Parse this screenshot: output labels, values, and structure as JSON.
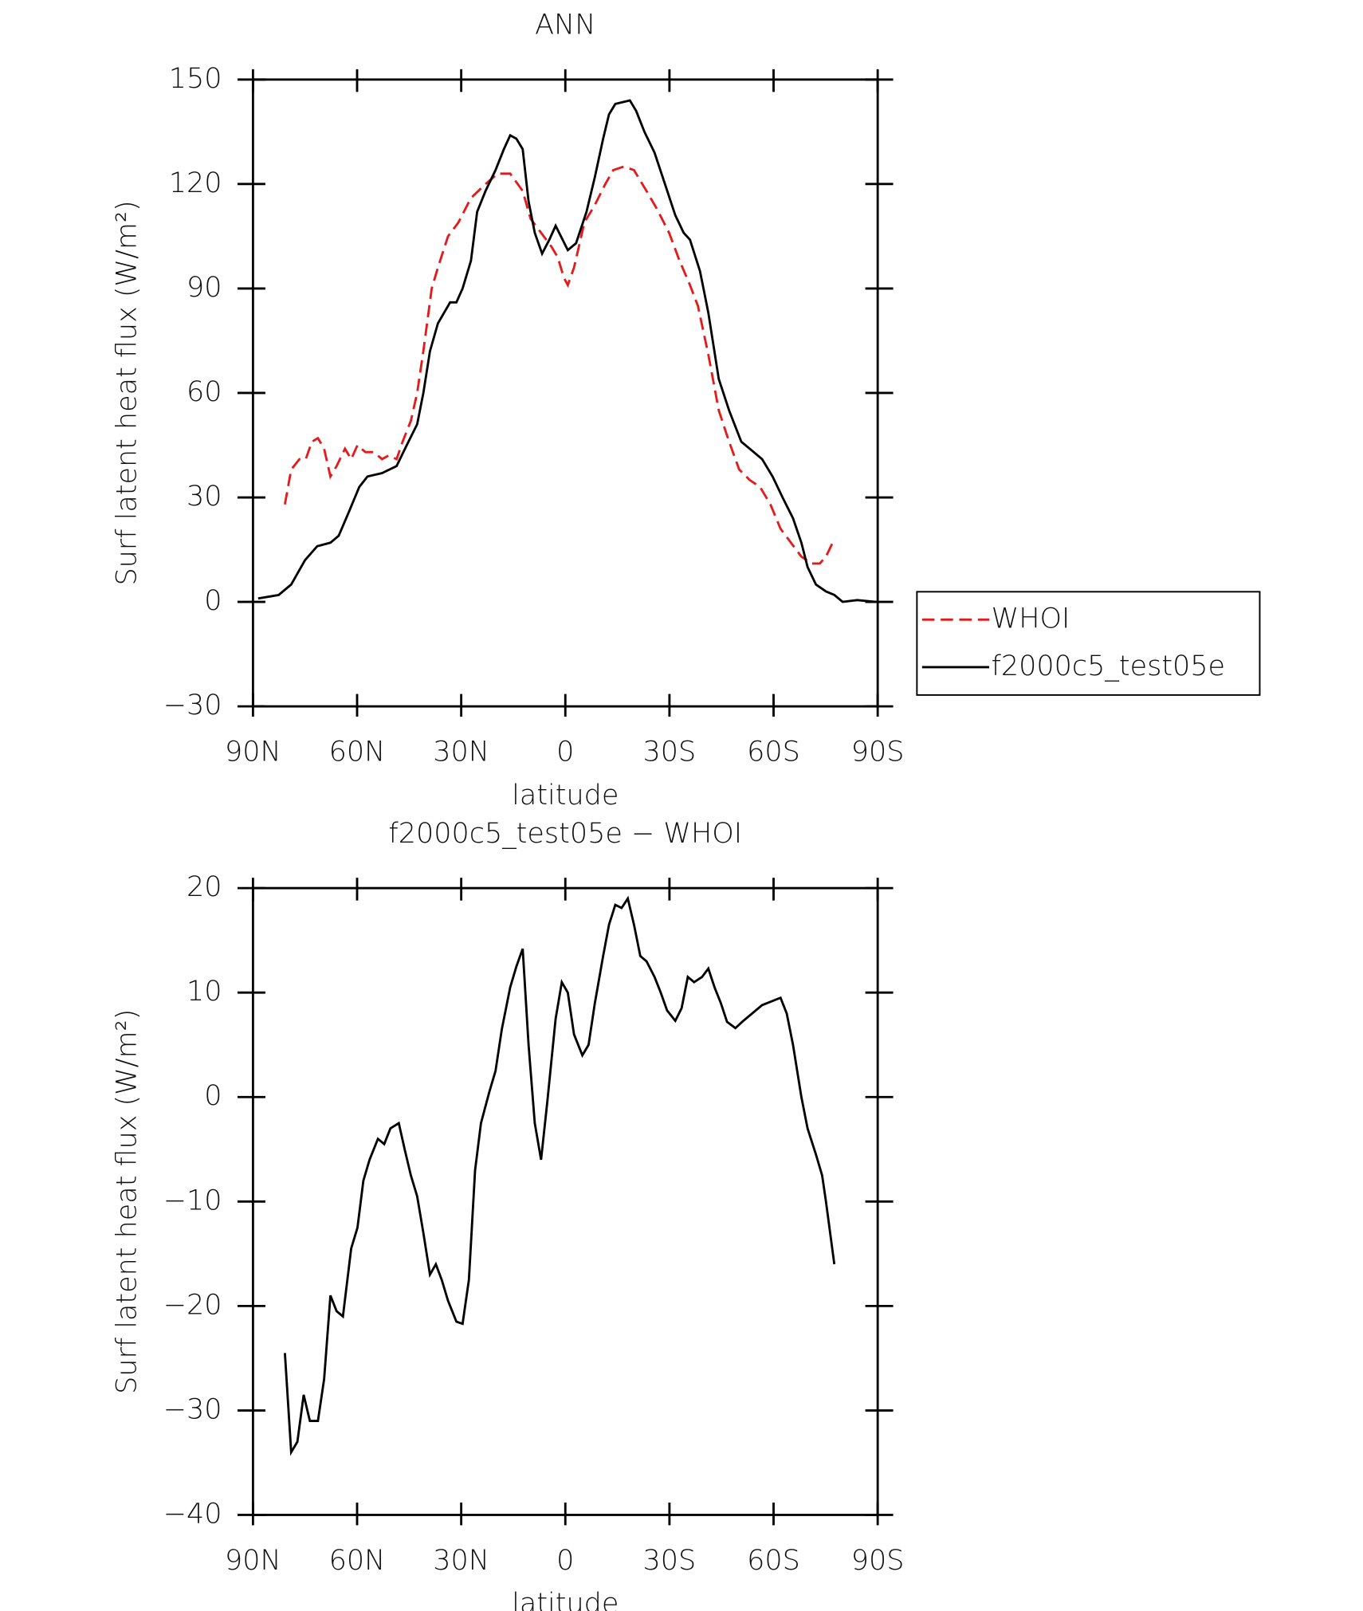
{
  "chart_data": [
    {
      "type": "line",
      "title": "ANN",
      "x_label": "latitude",
      "y_label": "Surf latent heat flux (W/m²)",
      "xlim": [
        90,
        -90
      ],
      "ylim": [
        -30,
        150
      ],
      "xticks": [
        {
          "value": 90,
          "label": "90N"
        },
        {
          "value": 60,
          "label": "60N"
        },
        {
          "value": 30,
          "label": "30N"
        },
        0,
        {
          "value": -30,
          "label": "30S"
        },
        {
          "value": -60,
          "label": "60S"
        },
        {
          "value": -90,
          "label": "90S"
        }
      ],
      "yticks": [
        {
          "value": -30,
          "label": "−30"
        },
        0,
        30,
        60,
        90,
        120,
        150
      ],
      "legend": "outside right",
      "series": [
        {
          "name": "WHOI",
          "color": "#e41a1c",
          "dash": true,
          "x": [
            80.8,
            79,
            76.6,
            74.8,
            73,
            71.3,
            69.5,
            67.7,
            65.9,
            63.5,
            61.7,
            59.9,
            57.6,
            55.2,
            52.8,
            51,
            48.6,
            46.9,
            44.5,
            42.7,
            40.9,
            38.5,
            36.7,
            33.8,
            30.8,
            27.2,
            23,
            19.5,
            15.9,
            12.3,
            10,
            7,
            4,
            2.2,
            0.4,
            -0.7,
            -2.5,
            -5.5,
            -8.5,
            -11.5,
            -13.8,
            -16.8,
            -19.8,
            -23.4,
            -26.3,
            -29.9,
            -32.9,
            -35.9,
            -38.2,
            -41.2,
            -44.2,
            -47.2,
            -50.1,
            -53.1,
            -56.1,
            -59.1,
            -62,
            -65,
            -68,
            -71,
            -73.3,
            -75.1,
            -77.5
          ],
          "values": [
            28,
            38,
            41,
            41,
            46,
            47,
            44,
            36,
            39,
            44,
            41,
            45,
            43,
            43,
            41,
            42,
            41,
            46,
            52,
            60,
            72,
            90,
            96,
            105,
            109,
            116,
            120,
            123,
            123,
            118,
            110,
            106,
            102,
            99,
            93,
            91,
            96,
            109,
            114,
            120,
            124,
            125,
            124,
            118,
            113,
            106,
            98,
            91,
            85,
            71,
            55,
            46,
            38,
            35,
            33,
            28,
            21,
            17,
            13,
            11,
            11,
            13,
            18
          ]
        },
        {
          "name": "f2000c5_test05e",
          "color": "#000000",
          "dash": false,
          "x": [
            88.5,
            85.5,
            82.6,
            79,
            75,
            71.5,
            67.7,
            65.3,
            62.3,
            59.4,
            57,
            52.8,
            48.6,
            45.7,
            42.7,
            40.9,
            39,
            36.7,
            33.2,
            31.4,
            29.6,
            27.2,
            25.4,
            23,
            20.1,
            17.7,
            15.9,
            14.1,
            12.3,
            10.6,
            8.8,
            6.7,
            4.6,
            2.8,
            -0.7,
            -3.1,
            -6.1,
            -8.5,
            -10.9,
            -12.6,
            -14.4,
            -18.6,
            -20.4,
            -22.8,
            -25.7,
            -28.7,
            -31.7,
            -34.1,
            -35.9,
            -38.8,
            -41.2,
            -44.2,
            -47.2,
            -50.7,
            -54.3,
            -56.7,
            -59.7,
            -62.6,
            -65.6,
            -68,
            -69.8,
            -72.2,
            -75.1,
            -77.5,
            -79.9,
            -84.1,
            -89.4
          ],
          "values": [
            1,
            1.5,
            2,
            5,
            12,
            16,
            17,
            19,
            26,
            33,
            36,
            37,
            39,
            45,
            51,
            60,
            72,
            80,
            86,
            86,
            90,
            98,
            112,
            118,
            124,
            130,
            134,
            133,
            130,
            115,
            106,
            100,
            104,
            108,
            101,
            103,
            112,
            122,
            133,
            140,
            143,
            144,
            141,
            135,
            129,
            120,
            111,
            106,
            104,
            95,
            83,
            64,
            55,
            46,
            43,
            41,
            36,
            30,
            24,
            17,
            10,
            5,
            3,
            2,
            0,
            0.5,
            0
          ]
        }
      ]
    },
    {
      "type": "line",
      "title": "f2000c5_test05e − WHOI",
      "x_label": "latitude",
      "y_label": "Surf latent heat flux (W/m²)",
      "xlim": [
        90,
        -90
      ],
      "ylim": [
        -40,
        20
      ],
      "xticks": [
        {
          "value": 90,
          "label": "90N"
        },
        {
          "value": 60,
          "label": "60N"
        },
        {
          "value": 30,
          "label": "30N"
        },
        0,
        {
          "value": -30,
          "label": "30S"
        },
        {
          "value": -60,
          "label": "60S"
        },
        {
          "value": -90,
          "label": "90S"
        }
      ],
      "yticks": [
        {
          "value": -40,
          "label": "−40"
        },
        {
          "value": -30,
          "label": "−30"
        },
        {
          "value": -20,
          "label": "−20"
        },
        {
          "value": -10,
          "label": "−10"
        },
        0,
        10,
        20
      ],
      "series": [
        {
          "color": "#000000",
          "dash": false,
          "x": [
            80.8,
            79,
            77.2,
            75.4,
            73.6,
            71.3,
            69.5,
            67.7,
            65.9,
            64.1,
            61.7,
            59.9,
            58.2,
            56.4,
            54,
            52.2,
            50.4,
            48,
            46.3,
            44.5,
            42.7,
            40.9,
            39,
            37.3,
            35.6,
            33.8,
            31.4,
            29.6,
            27.8,
            26,
            24.3,
            21.9,
            20.1,
            18.3,
            15.9,
            14.1,
            12.3,
            10.6,
            8.8,
            7,
            5.2,
            2.8,
            1,
            -0.7,
            -2.5,
            -4.9,
            -6.7,
            -8.5,
            -10.9,
            -12.6,
            -14.4,
            -16.2,
            -18,
            -19.8,
            -21.6,
            -23.4,
            -25.7,
            -27.5,
            -29.3,
            -31.7,
            -33.5,
            -35.3,
            -37.1,
            -39.4,
            -41.2,
            -43,
            -44.8,
            -46.6,
            -49,
            -51.3,
            -56.7,
            -59.7,
            -62,
            -63.8,
            -65.6,
            -68,
            -69.8,
            -72.2,
            -74,
            -75.1,
            -77.5
          ],
          "values": [
            -24.5,
            -34,
            -33,
            -28.5,
            -31,
            -31,
            -27,
            -19,
            -20.5,
            -21,
            -14.5,
            -12.5,
            -8,
            -6,
            -4,
            -4.5,
            -3,
            -2.5,
            -5,
            -7.5,
            -9.5,
            -13,
            -17,
            -16,
            -17.5,
            -19.5,
            -21.5,
            -21.7,
            -17.5,
            -7,
            -2.5,
            0.5,
            2.5,
            6.5,
            10.5,
            12.5,
            14.2,
            5,
            -2.5,
            -6,
            -0.5,
            7.5,
            11,
            10,
            6,
            4,
            5,
            9,
            13.5,
            16.5,
            18.4,
            18.1,
            19,
            16.5,
            13.5,
            13,
            11.5,
            10,
            8.3,
            7.3,
            8.5,
            11.5,
            11,
            11.5,
            12.3,
            10.5,
            9,
            7.2,
            6.6,
            7.3,
            8.8,
            9.2,
            9.5,
            8,
            5,
            0,
            -3,
            -5.5,
            -7.5,
            -10,
            -16
          ]
        }
      ]
    }
  ]
}
